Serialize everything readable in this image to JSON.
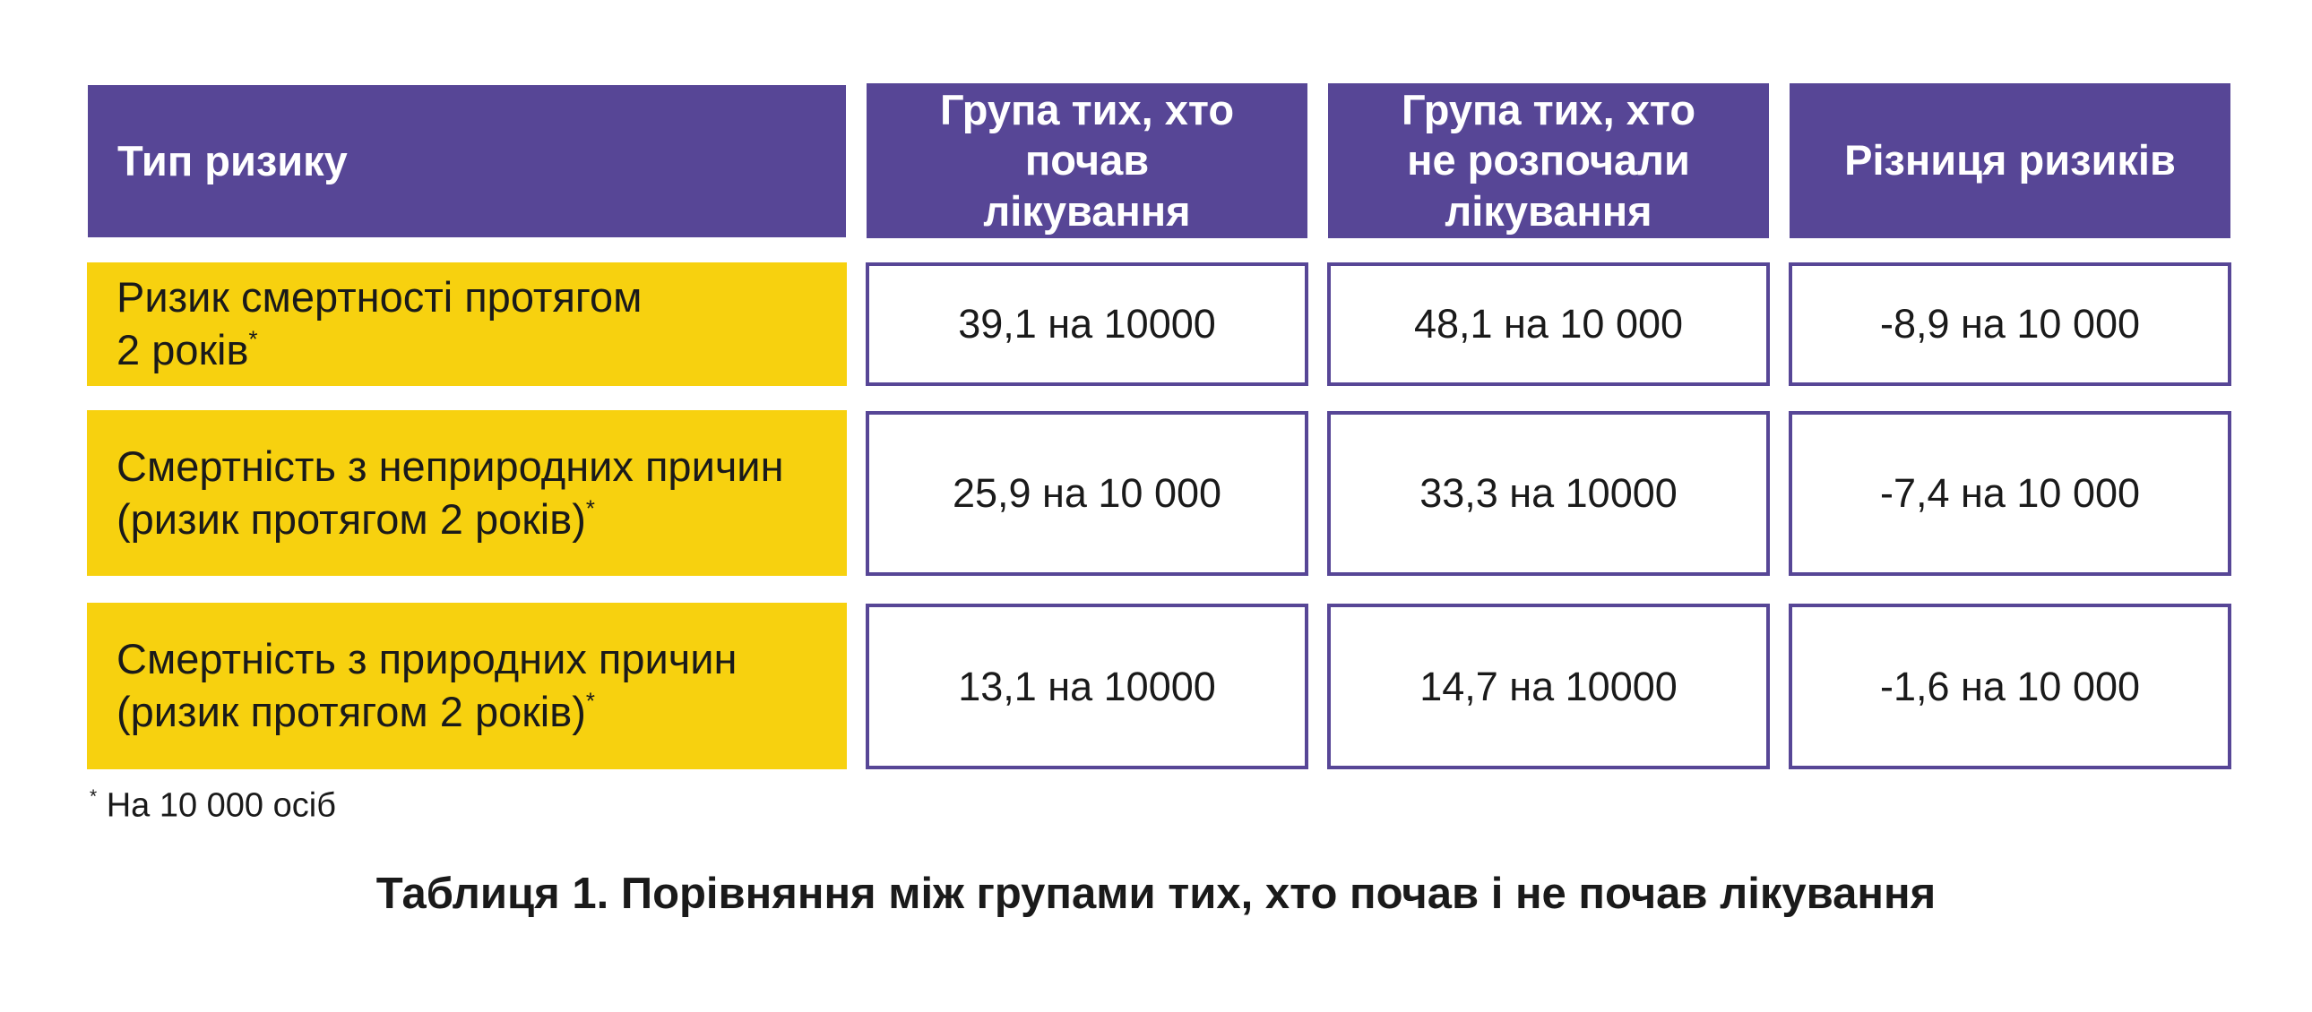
{
  "colors": {
    "header_bg": "#574696",
    "risk_bg": "#f7d10f",
    "border": "#574696"
  },
  "table": {
    "headers": [
      "Тип ризику",
      "Група тих, хто почав лікування",
      "Група тих, хто не розпочали лікування",
      "Різниця ризиків"
    ],
    "rows": [
      {
        "risk_line1": "Ризик смертності протягом",
        "risk_line2": "2 років",
        "marker": "*",
        "treated": "39,1 на 10000",
        "untreated": "48,1 на 10 000",
        "difference": "-8,9 на 10 000"
      },
      {
        "risk_line1": "Смертність з неприродних причин",
        "risk_line2": "(ризик протягом 2 років)",
        "marker": "*",
        "treated": "25,9 на 10 000",
        "untreated": "33,3 на 10000",
        "difference": "-7,4 на 10 000"
      },
      {
        "risk_line1": "Смертність з природних причин",
        "risk_line2": "(ризик протягом 2 років)",
        "marker": "*",
        "treated": "13,1 на 10000",
        "untreated": "14,7 на 10000",
        "difference": "-1,6 на 10 000"
      }
    ]
  },
  "footnote": {
    "marker": "*",
    "text": " На 10 000 осіб"
  },
  "caption": "Таблиця 1. Порівняння між групами тих, хто почав і не почав лікування"
}
